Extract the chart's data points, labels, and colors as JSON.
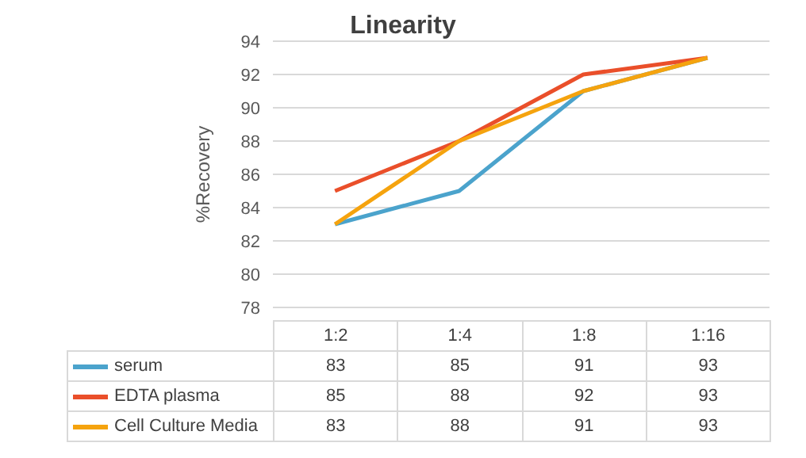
{
  "chart_data": {
    "type": "line",
    "title": "Linearity",
    "ylabel": "%Recovery",
    "categories": [
      "1:2",
      "1:4",
      "1:8",
      "1:16"
    ],
    "series": [
      {
        "name": "serum",
        "color": "#4ba3cc",
        "values": [
          83,
          85,
          91,
          93
        ]
      },
      {
        "name": "EDTA plasma",
        "color": "#ea4f2a",
        "values": [
          85,
          88,
          92,
          93
        ]
      },
      {
        "name": "Cell Culture Media",
        "color": "#f5a30e",
        "values": [
          83,
          88,
          91,
          93
        ]
      }
    ],
    "ylim": [
      78,
      94
    ],
    "yticks": [
      78,
      80,
      82,
      84,
      86,
      88,
      90,
      92,
      94
    ],
    "grid": "y",
    "legend": "bottom",
    "marker": "none",
    "data_labels": true
  }
}
